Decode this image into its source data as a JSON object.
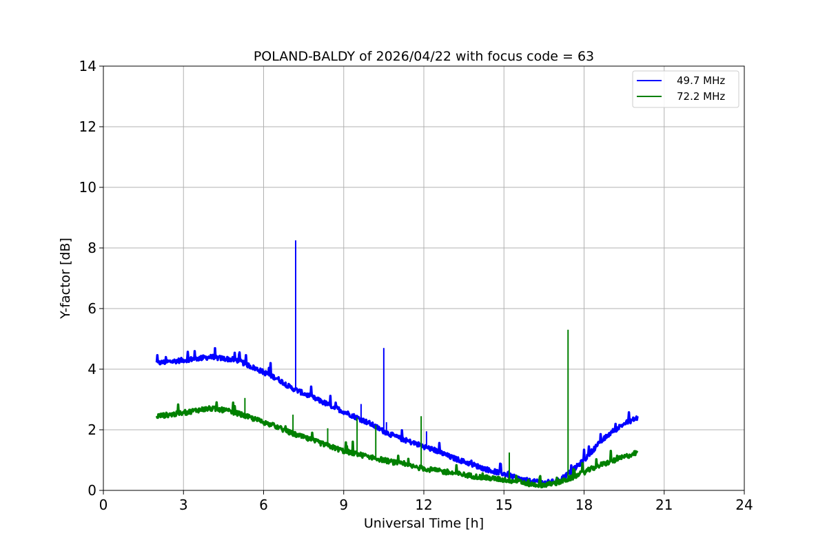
{
  "chart_data": {
    "type": "line",
    "title": "POLAND-BALDY of 2026/04/22 with focus code = 63",
    "xlabel": "Universal Time [h]",
    "ylabel": "Y-factor [dB]",
    "xlim": [
      0,
      24
    ],
    "ylim": [
      0,
      14
    ],
    "xticks": [
      0,
      3,
      6,
      9,
      12,
      15,
      18,
      21,
      24
    ],
    "yticks": [
      0,
      2,
      4,
      6,
      8,
      10,
      12,
      14
    ],
    "grid": true,
    "legend_position": "top-right",
    "series": [
      {
        "name": "49.7 MHz",
        "color": "#0000ff",
        "x": [
          2.0,
          2.5,
          3.0,
          3.5,
          4.0,
          4.5,
          5.0,
          5.5,
          6.0,
          6.5,
          7.0,
          7.5,
          8.0,
          8.5,
          9.0,
          9.5,
          10.0,
          10.5,
          11.0,
          11.5,
          12.0,
          12.5,
          13.0,
          13.5,
          14.0,
          14.5,
          15.0,
          15.5,
          16.0,
          16.5,
          17.0,
          17.5,
          18.0,
          18.5,
          19.0,
          19.5,
          20.0
        ],
        "y": [
          4.2,
          4.25,
          4.3,
          4.35,
          4.4,
          4.35,
          4.3,
          4.1,
          3.9,
          3.7,
          3.4,
          3.2,
          3.0,
          2.8,
          2.6,
          2.4,
          2.2,
          1.95,
          1.75,
          1.6,
          1.45,
          1.3,
          1.1,
          0.95,
          0.8,
          0.65,
          0.55,
          0.4,
          0.3,
          0.25,
          0.3,
          0.6,
          1.0,
          1.5,
          1.9,
          2.2,
          2.4
        ],
        "spikes": [
          {
            "x": 7.2,
            "y": 8.25
          },
          {
            "x": 9.65,
            "y": 2.85
          },
          {
            "x": 10.5,
            "y": 4.7
          },
          {
            "x": 10.6,
            "y": 2.25
          },
          {
            "x": 12.1,
            "y": 1.95
          }
        ]
      },
      {
        "name": "72.2 MHz",
        "color": "#008000",
        "x": [
          2.0,
          2.5,
          3.0,
          3.5,
          4.0,
          4.5,
          5.0,
          5.5,
          6.0,
          6.5,
          7.0,
          7.5,
          8.0,
          8.5,
          9.0,
          9.5,
          10.0,
          10.5,
          11.0,
          11.5,
          12.0,
          12.5,
          13.0,
          13.5,
          14.0,
          14.5,
          15.0,
          15.5,
          16.0,
          16.5,
          17.0,
          17.5,
          18.0,
          18.5,
          19.0,
          19.5,
          20.0
        ],
        "y": [
          2.45,
          2.5,
          2.55,
          2.65,
          2.7,
          2.65,
          2.55,
          2.4,
          2.25,
          2.1,
          1.9,
          1.75,
          1.6,
          1.45,
          1.3,
          1.2,
          1.1,
          1.0,
          0.9,
          0.8,
          0.72,
          0.65,
          0.58,
          0.52,
          0.45,
          0.4,
          0.35,
          0.3,
          0.2,
          0.18,
          0.25,
          0.4,
          0.6,
          0.8,
          0.95,
          1.1,
          1.25
        ],
        "spikes": [
          {
            "x": 5.3,
            "y": 3.05
          },
          {
            "x": 7.1,
            "y": 2.5
          },
          {
            "x": 8.4,
            "y": 2.05
          },
          {
            "x": 9.5,
            "y": 2.4
          },
          {
            "x": 10.2,
            "y": 2.15
          },
          {
            "x": 11.9,
            "y": 2.45
          },
          {
            "x": 15.2,
            "y": 1.25
          },
          {
            "x": 17.4,
            "y": 5.3
          }
        ]
      }
    ]
  }
}
